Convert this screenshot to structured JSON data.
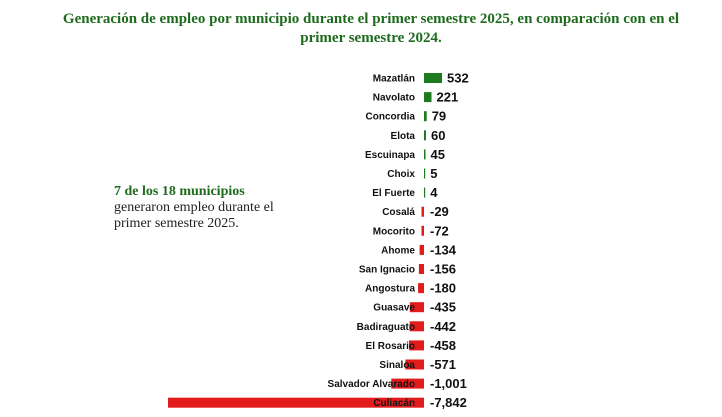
{
  "title": "Generación de empleo por municipio durante el primer semestre 2025, en comparación con en el primer semestre 2024.",
  "note": {
    "highlight": "7 de los 18 municipios",
    "text": "generaron empleo durante el primer semestre 2025."
  },
  "colors": {
    "positive": "#1e7a1e",
    "negative": "#e21b1b",
    "title": "#1e6b1e"
  },
  "chart_data": {
    "type": "bar",
    "orientation": "horizontal",
    "categories": [
      "Mazatlán",
      "Navolato",
      "Concordia",
      "Elota",
      "Escuinapa",
      "Choix",
      "El Fuerte",
      "Cosalá",
      "Mocorito",
      "Ahome",
      "San Ignacio",
      "Angostura",
      "Guasave",
      "Badiraguato",
      "El Rosario",
      "Sinaloa",
      "Salvador Alvarado",
      "Culiacán"
    ],
    "values": [
      532,
      221,
      79,
      60,
      45,
      5,
      4,
      -29,
      -72,
      -134,
      -156,
      -180,
      -435,
      -442,
      -458,
      -571,
      -1001,
      -7842
    ],
    "value_labels": [
      "532",
      "221",
      "79",
      "60",
      "45",
      "5",
      "4",
      "-29",
      "-72",
      "-134",
      "-156",
      "-180",
      "-435",
      "-442",
      "-458",
      "-571",
      "-1,001",
      "-7,842"
    ],
    "xlabel": "",
    "ylabel": "",
    "grid": false,
    "legend": "none"
  }
}
